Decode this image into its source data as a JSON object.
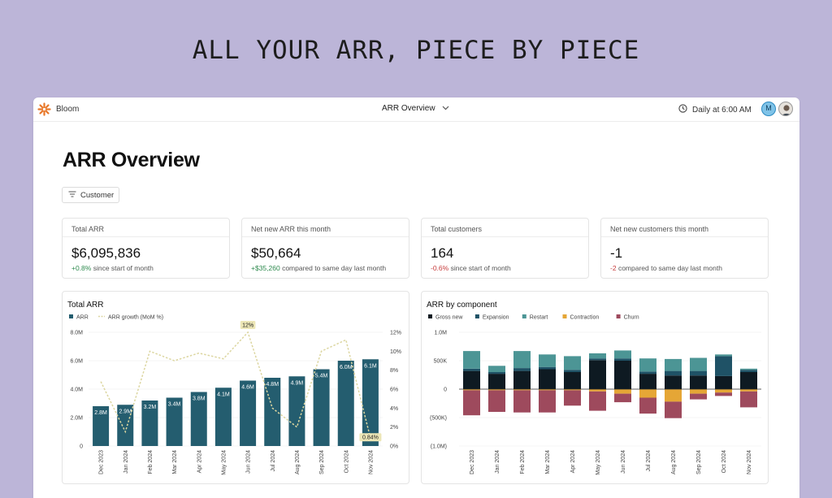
{
  "headline": "ALL YOUR ARR, PIECE BY PIECE",
  "topbar": {
    "brand": "Bloom",
    "report": "ARR Overview",
    "schedule": "Daily at 6:00 AM",
    "avatar_initial": "M"
  },
  "page": {
    "title": "ARR Overview",
    "filter_label": "Customer"
  },
  "kpis": [
    {
      "label": "Total ARR",
      "value": "$6,095,836",
      "delta": "+0.8%",
      "delta_tone": "pos",
      "note": "since start of month"
    },
    {
      "label": "Net new ARR this month",
      "value": "$50,664",
      "delta": "+$35,260",
      "delta_tone": "pos",
      "note": "compared to same day last month"
    },
    {
      "label": "Total customers",
      "value": "164",
      "delta": "-0.6%",
      "delta_tone": "neg",
      "note": "since start of month"
    },
    {
      "label": "Net new customers this month",
      "value": "-1",
      "delta": "-2",
      "delta_tone": "neg",
      "note": "compared to same day last month"
    }
  ],
  "colors": {
    "arr_bar": "#245d6f",
    "growth_line": "#dcd6a0",
    "gross_new": "#0e1a22",
    "expansion": "#1f5266",
    "restart": "#4c9595",
    "contraction": "#e5a636",
    "churn": "#9e4a5d"
  },
  "chart_data": [
    {
      "type": "bar",
      "title": "Total ARR",
      "categories": [
        "Dec 2023",
        "Jan 2024",
        "Feb 2024",
        "Mar 2024",
        "Apr 2024",
        "May 2024",
        "Jun 2024",
        "Jul 2024",
        "Aug 2024",
        "Sep 2024",
        "Oct 2024",
        "Nov 2024"
      ],
      "series": [
        {
          "name": "ARR",
          "kind": "bar",
          "axis": "left",
          "values": [
            2.8,
            2.9,
            3.2,
            3.4,
            3.8,
            4.1,
            4.6,
            4.8,
            4.9,
            5.4,
            6.0,
            6.1
          ],
          "labels": [
            "2.8M",
            "2.9M",
            "3.2M",
            "3.4M",
            "3.8M",
            "4.1M",
            "4.6M",
            "4.8M",
            "4.9M",
            "5.4M",
            "6.0M",
            "6.1M"
          ]
        },
        {
          "name": "ARR growth (MoM %)",
          "kind": "line",
          "axis": "right",
          "values": [
            6.8,
            1.5,
            10.0,
            9.0,
            9.8,
            9.2,
            12.0,
            4.0,
            2.0,
            10.0,
            11.2,
            0.84
          ]
        }
      ],
      "y_ticks": [
        "0",
        "2.0M",
        "4.0M",
        "6.0M",
        "8.0M"
      ],
      "ylim": [
        0,
        8
      ],
      "y2_ticks": [
        "0%",
        "2%",
        "4%",
        "6%",
        "8%",
        "10%",
        "12%"
      ],
      "y2lim": [
        0,
        12
      ],
      "callouts": [
        {
          "index": 6,
          "text": "12%"
        },
        {
          "index": 11,
          "text": "0.84%"
        }
      ],
      "legend": "top-left"
    },
    {
      "type": "bar",
      "stacked": true,
      "title": "ARR by component",
      "categories": [
        "Dec 2023",
        "Jan 2024",
        "Feb 2024",
        "Mar 2024",
        "Apr 2024",
        "May 2024",
        "Jun 2024",
        "Jul 2024",
        "Aug 2024",
        "Sep 2024",
        "Oct 2024",
        "Nov 2024"
      ],
      "series": [
        {
          "name": "Gross new",
          "values": [
            320,
            270,
            320,
            350,
            300,
            510,
            500,
            270,
            240,
            240,
            230,
            300
          ]
        },
        {
          "name": "Expansion",
          "values": [
            40,
            30,
            50,
            40,
            40,
            30,
            40,
            40,
            80,
            80,
            350,
            40
          ]
        },
        {
          "name": "Restart",
          "values": [
            310,
            110,
            300,
            220,
            240,
            90,
            140,
            230,
            210,
            230,
            30,
            20
          ]
        },
        {
          "name": "Contraction",
          "values": [
            -20,
            -20,
            -20,
            -20,
            -20,
            -40,
            -80,
            -150,
            -220,
            -80,
            -60,
            -40
          ]
        },
        {
          "name": "Churn",
          "values": [
            -440,
            -380,
            -390,
            -390,
            -270,
            -340,
            -150,
            -280,
            -290,
            -100,
            -60,
            -280
          ]
        }
      ],
      "y_ticks": [
        "1.0M",
        "500K",
        "0",
        "(500K)",
        "(1.0M)"
      ],
      "ylim": [
        -1000,
        1000
      ],
      "legend": "top-left"
    }
  ]
}
